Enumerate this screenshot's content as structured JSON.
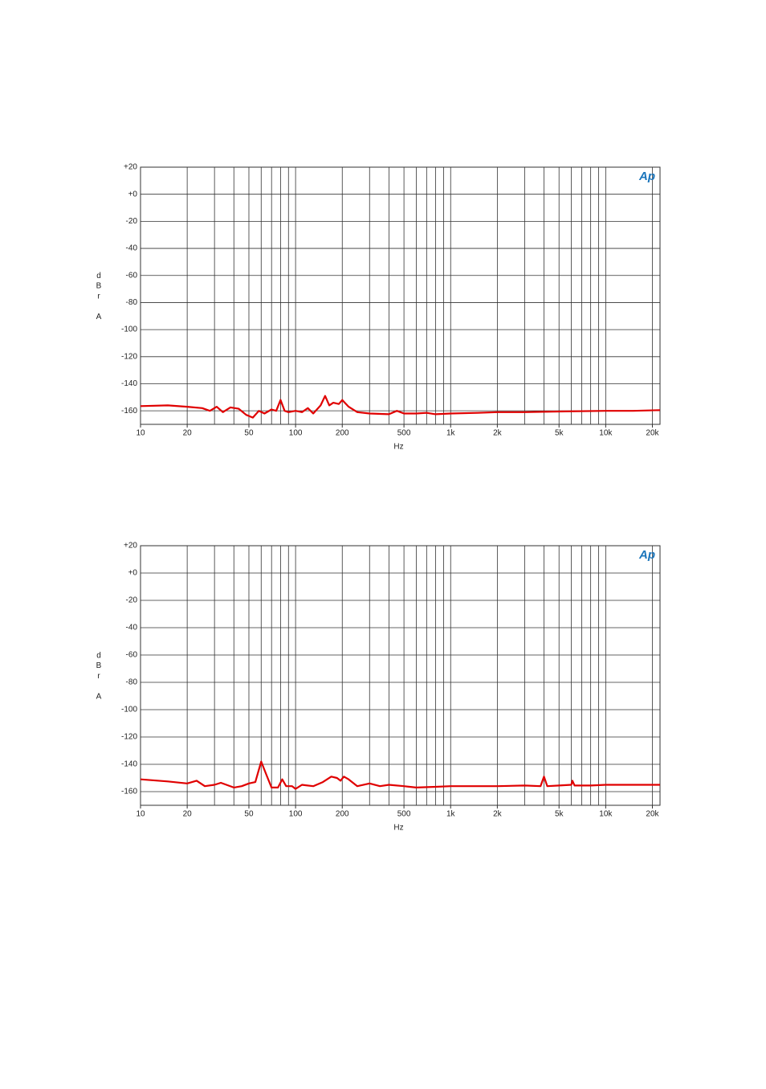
{
  "chart_data": [
    {
      "type": "line",
      "ylabel": "dBr A",
      "xlabel": "Hz",
      "logo": "Ap",
      "color": "#e00000",
      "xlog": true,
      "grid": true,
      "xlim": [
        10,
        22400
      ],
      "ylim": [
        -170,
        20
      ],
      "xticks": [
        10,
        20,
        50,
        100,
        200,
        500,
        {
          "value": 1000,
          "label": "1k"
        },
        {
          "value": 2000,
          "label": "2k"
        },
        {
          "value": 5000,
          "label": "5k"
        },
        {
          "value": 10000,
          "label": "10k"
        },
        {
          "value": 20000,
          "label": "20k"
        }
      ],
      "yticks": [
        {
          "value": 20,
          "label": "+20"
        },
        {
          "value": 0,
          "label": "+0"
        },
        -20,
        -40,
        -60,
        -80,
        -100,
        -120,
        -140,
        -160
      ],
      "x": [
        10,
        15,
        20,
        25,
        28,
        31,
        34,
        38,
        43,
        48,
        53,
        58,
        63,
        70,
        75,
        80,
        85,
        90,
        100,
        110,
        120,
        130,
        145,
        155,
        165,
        175,
        190,
        200,
        220,
        250,
        300,
        400,
        450,
        500,
        600,
        700,
        800,
        1000,
        1500,
        2000,
        3000,
        5000,
        10000,
        15000,
        22400
      ],
      "values": [
        -156.5,
        -156,
        -157,
        -158,
        -160,
        -157,
        -161,
        -157.5,
        -158.5,
        -163,
        -165,
        -160,
        -162,
        -159,
        -160,
        -152,
        -160,
        -161,
        -160,
        -161,
        -158,
        -162,
        -156,
        -149,
        -156,
        -154,
        -155,
        -152,
        -157,
        -161,
        -162,
        -162.5,
        -160,
        -162,
        -162,
        -161.5,
        -162.5,
        -162,
        -161.5,
        -161,
        -161,
        -160.5,
        -160,
        -160,
        -159.5
      ]
    },
    {
      "type": "line",
      "ylabel": "dBr A",
      "xlabel": "Hz",
      "logo": "Ap",
      "color": "#e00000",
      "xlog": true,
      "grid": true,
      "xlim": [
        10,
        22400
      ],
      "ylim": [
        -170,
        20
      ],
      "xticks": [
        10,
        20,
        50,
        100,
        200,
        500,
        {
          "value": 1000,
          "label": "1k"
        },
        {
          "value": 2000,
          "label": "2k"
        },
        {
          "value": 5000,
          "label": "5k"
        },
        {
          "value": 10000,
          "label": "10k"
        },
        {
          "value": 20000,
          "label": "20k"
        }
      ],
      "yticks": [
        {
          "value": 20,
          "label": "+20"
        },
        {
          "value": 0,
          "label": "+0"
        },
        -20,
        -40,
        -60,
        -80,
        -100,
        -120,
        -140,
        -160
      ],
      "x": [
        10,
        15,
        20,
        23,
        26,
        30,
        33,
        40,
        45,
        50,
        55,
        60,
        65,
        70,
        77,
        82,
        87,
        95,
        100,
        110,
        130,
        150,
        170,
        185,
        195,
        205,
        220,
        250,
        300,
        350,
        400,
        500,
        600,
        800,
        1000,
        1500,
        2000,
        3000,
        3800,
        4000,
        4200,
        5000,
        6000,
        6100,
        6300,
        8000,
        10000,
        15000,
        22400
      ],
      "values": [
        -151,
        -152.5,
        -154,
        -152,
        -156,
        -155,
        -153.5,
        -157,
        -156,
        -154,
        -153,
        -138,
        -148,
        -157,
        -157,
        -151,
        -156,
        -156,
        -158,
        -155,
        -156,
        -153,
        -149,
        -150,
        -152,
        -149,
        -151,
        -156,
        -154,
        -156,
        -155,
        -156,
        -157,
        -156.5,
        -156,
        -156,
        -156,
        -155.5,
        -156,
        -149,
        -156,
        -155.5,
        -155,
        -152,
        -155.5,
        -155.5,
        -155,
        -155,
        -155
      ]
    }
  ]
}
